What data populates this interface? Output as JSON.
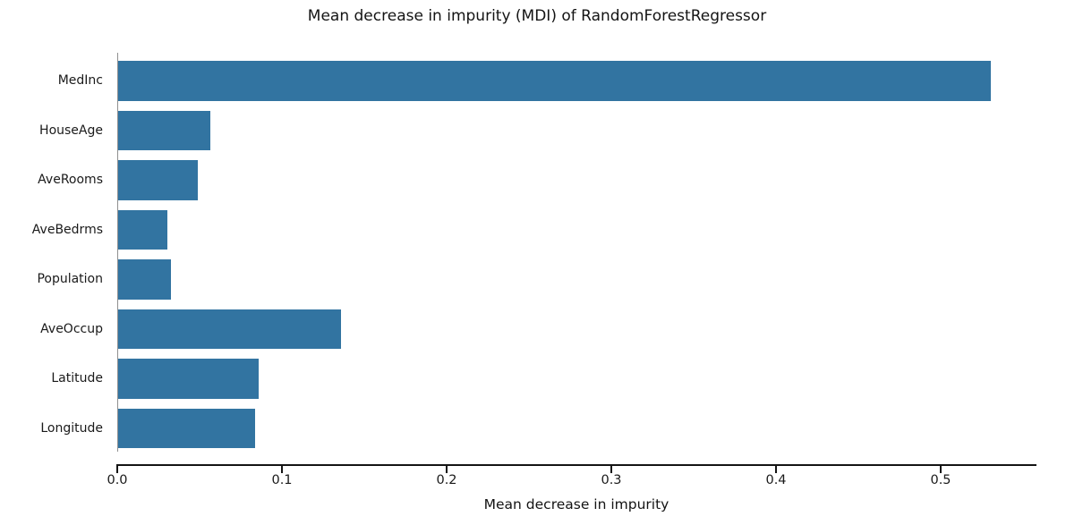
{
  "chart_data": {
    "type": "bar",
    "orientation": "horizontal",
    "title": "Mean decrease in impurity (MDI) of RandomForestRegressor",
    "xlabel": "Mean decrease in impurity",
    "ylabel": "",
    "categories": [
      "MedInc",
      "HouseAge",
      "AveRooms",
      "AveBedrms",
      "Population",
      "AveOccup",
      "Latitude",
      "Longitude"
    ],
    "values": [
      0.53,
      0.056,
      0.048,
      0.03,
      0.032,
      0.135,
      0.085,
      0.083
    ],
    "xlim": [
      0.0,
      0.558
    ],
    "xticks": [
      0.0,
      0.1,
      0.2,
      0.3,
      0.4,
      0.5
    ],
    "xtick_labels": [
      "0.0",
      "0.1",
      "0.2",
      "0.3",
      "0.4",
      "0.5"
    ],
    "grid": false,
    "legend": null,
    "bar_color": "#3274a1",
    "left_spine_color": "#909090",
    "bottom_spine_color": "#141414",
    "text_color": "#1a1a1a"
  }
}
